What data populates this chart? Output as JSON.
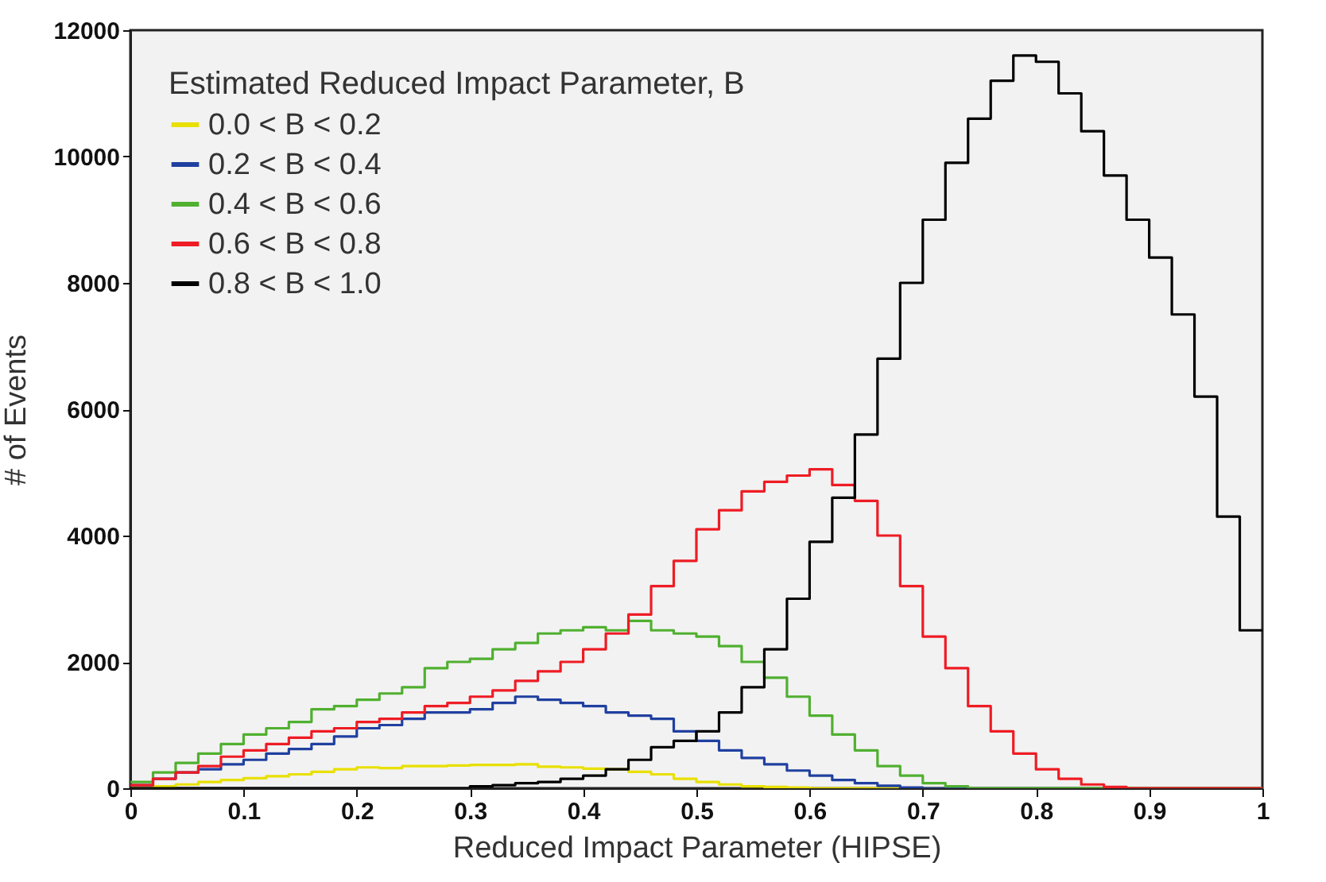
{
  "chart_data": {
    "type": "histogram",
    "xlabel": "Reduced Impact Parameter (HIPSE)",
    "ylabel": "# of Events",
    "legend_title": "Estimated Reduced Impact Parameter, B",
    "bins": [
      0,
      0.02,
      0.04,
      0.06,
      0.08,
      0.1,
      0.12,
      0.14,
      0.16,
      0.18,
      0.2,
      0.22,
      0.24,
      0.26,
      0.28,
      0.3,
      0.32,
      0.34,
      0.36,
      0.38,
      0.4,
      0.42,
      0.44,
      0.46,
      0.48,
      0.5,
      0.52,
      0.54,
      0.56,
      0.58,
      0.6,
      0.62,
      0.64,
      0.66,
      0.68,
      0.7,
      0.72,
      0.74,
      0.76,
      0.78,
      0.8,
      0.82,
      0.84,
      0.86,
      0.88,
      0.9,
      0.92,
      0.94,
      0.96,
      0.98,
      1
    ],
    "series": [
      {
        "name": "0.0 < B < 0.2",
        "color": "#e8e000",
        "values": [
          0,
          30,
          60,
          100,
          130,
          160,
          190,
          220,
          260,
          300,
          330,
          320,
          350,
          350,
          360,
          370,
          370,
          380,
          340,
          330,
          310,
          300,
          260,
          220,
          150,
          100,
          60,
          30,
          20,
          10,
          0,
          0,
          0,
          0,
          0,
          0,
          0,
          0,
          0,
          0,
          0,
          0,
          0,
          0,
          0,
          0,
          0,
          0,
          0,
          0
        ]
      },
      {
        "name": "0.2 < B < 0.4",
        "color": "#2040a0",
        "values": [
          50,
          150,
          250,
          300,
          380,
          450,
          550,
          620,
          700,
          820,
          950,
          1000,
          1100,
          1200,
          1200,
          1250,
          1350,
          1450,
          1400,
          1350,
          1300,
          1200,
          1150,
          1100,
          900,
          750,
          600,
          480,
          380,
          280,
          200,
          130,
          80,
          40,
          10,
          0,
          0,
          0,
          0,
          0,
          0,
          0,
          0,
          0,
          0,
          0,
          0,
          0,
          0,
          0
        ]
      },
      {
        "name": "0.4 < B < 0.6",
        "color": "#50b030",
        "values": [
          100,
          250,
          400,
          550,
          700,
          850,
          950,
          1050,
          1250,
          1300,
          1400,
          1500,
          1600,
          1900,
          2000,
          2050,
          2200,
          2300,
          2450,
          2500,
          2550,
          2500,
          2650,
          2500,
          2450,
          2400,
          2250,
          2000,
          1750,
          1450,
          1150,
          850,
          600,
          350,
          200,
          80,
          30,
          0,
          0,
          0,
          0,
          0,
          0,
          0,
          0,
          0,
          0,
          0,
          0,
          0
        ]
      },
      {
        "name": "0.6 < B < 0.8",
        "color": "#ee1c24",
        "values": [
          50,
          150,
          250,
          350,
          500,
          600,
          700,
          800,
          900,
          950,
          1050,
          1100,
          1200,
          1300,
          1350,
          1450,
          1550,
          1700,
          1850,
          2000,
          2200,
          2450,
          2750,
          3200,
          3600,
          4100,
          4400,
          4700,
          4850,
          4950,
          5050,
          4800,
          4550,
          4000,
          3200,
          2400,
          1900,
          1300,
          900,
          550,
          300,
          150,
          60,
          20,
          0,
          0,
          0,
          0,
          0,
          0
        ]
      },
      {
        "name": "0.8 < B < 1.0",
        "color": "#000000",
        "values": [
          0,
          0,
          0,
          0,
          0,
          0,
          0,
          0,
          0,
          0,
          0,
          0,
          0,
          0,
          0,
          30,
          50,
          80,
          100,
          150,
          200,
          300,
          450,
          650,
          750,
          900,
          1200,
          1600,
          2200,
          3000,
          3900,
          4600,
          5600,
          6800,
          8000,
          9000,
          9900,
          10600,
          11200,
          11600,
          11500,
          11000,
          10400,
          9700,
          9000,
          8400,
          7500,
          6200,
          4300,
          2500
        ]
      }
    ],
    "xlim": [
      0,
      1
    ],
    "xticks": [
      0,
      0.1,
      0.2,
      0.3,
      0.4,
      0.5,
      0.6,
      0.7,
      0.8,
      0.9,
      1
    ],
    "ylim": [
      0,
      12000
    ],
    "yticks": [
      0,
      2000,
      4000,
      6000,
      8000,
      10000,
      12000
    ],
    "grid": false,
    "legend": "top left"
  }
}
